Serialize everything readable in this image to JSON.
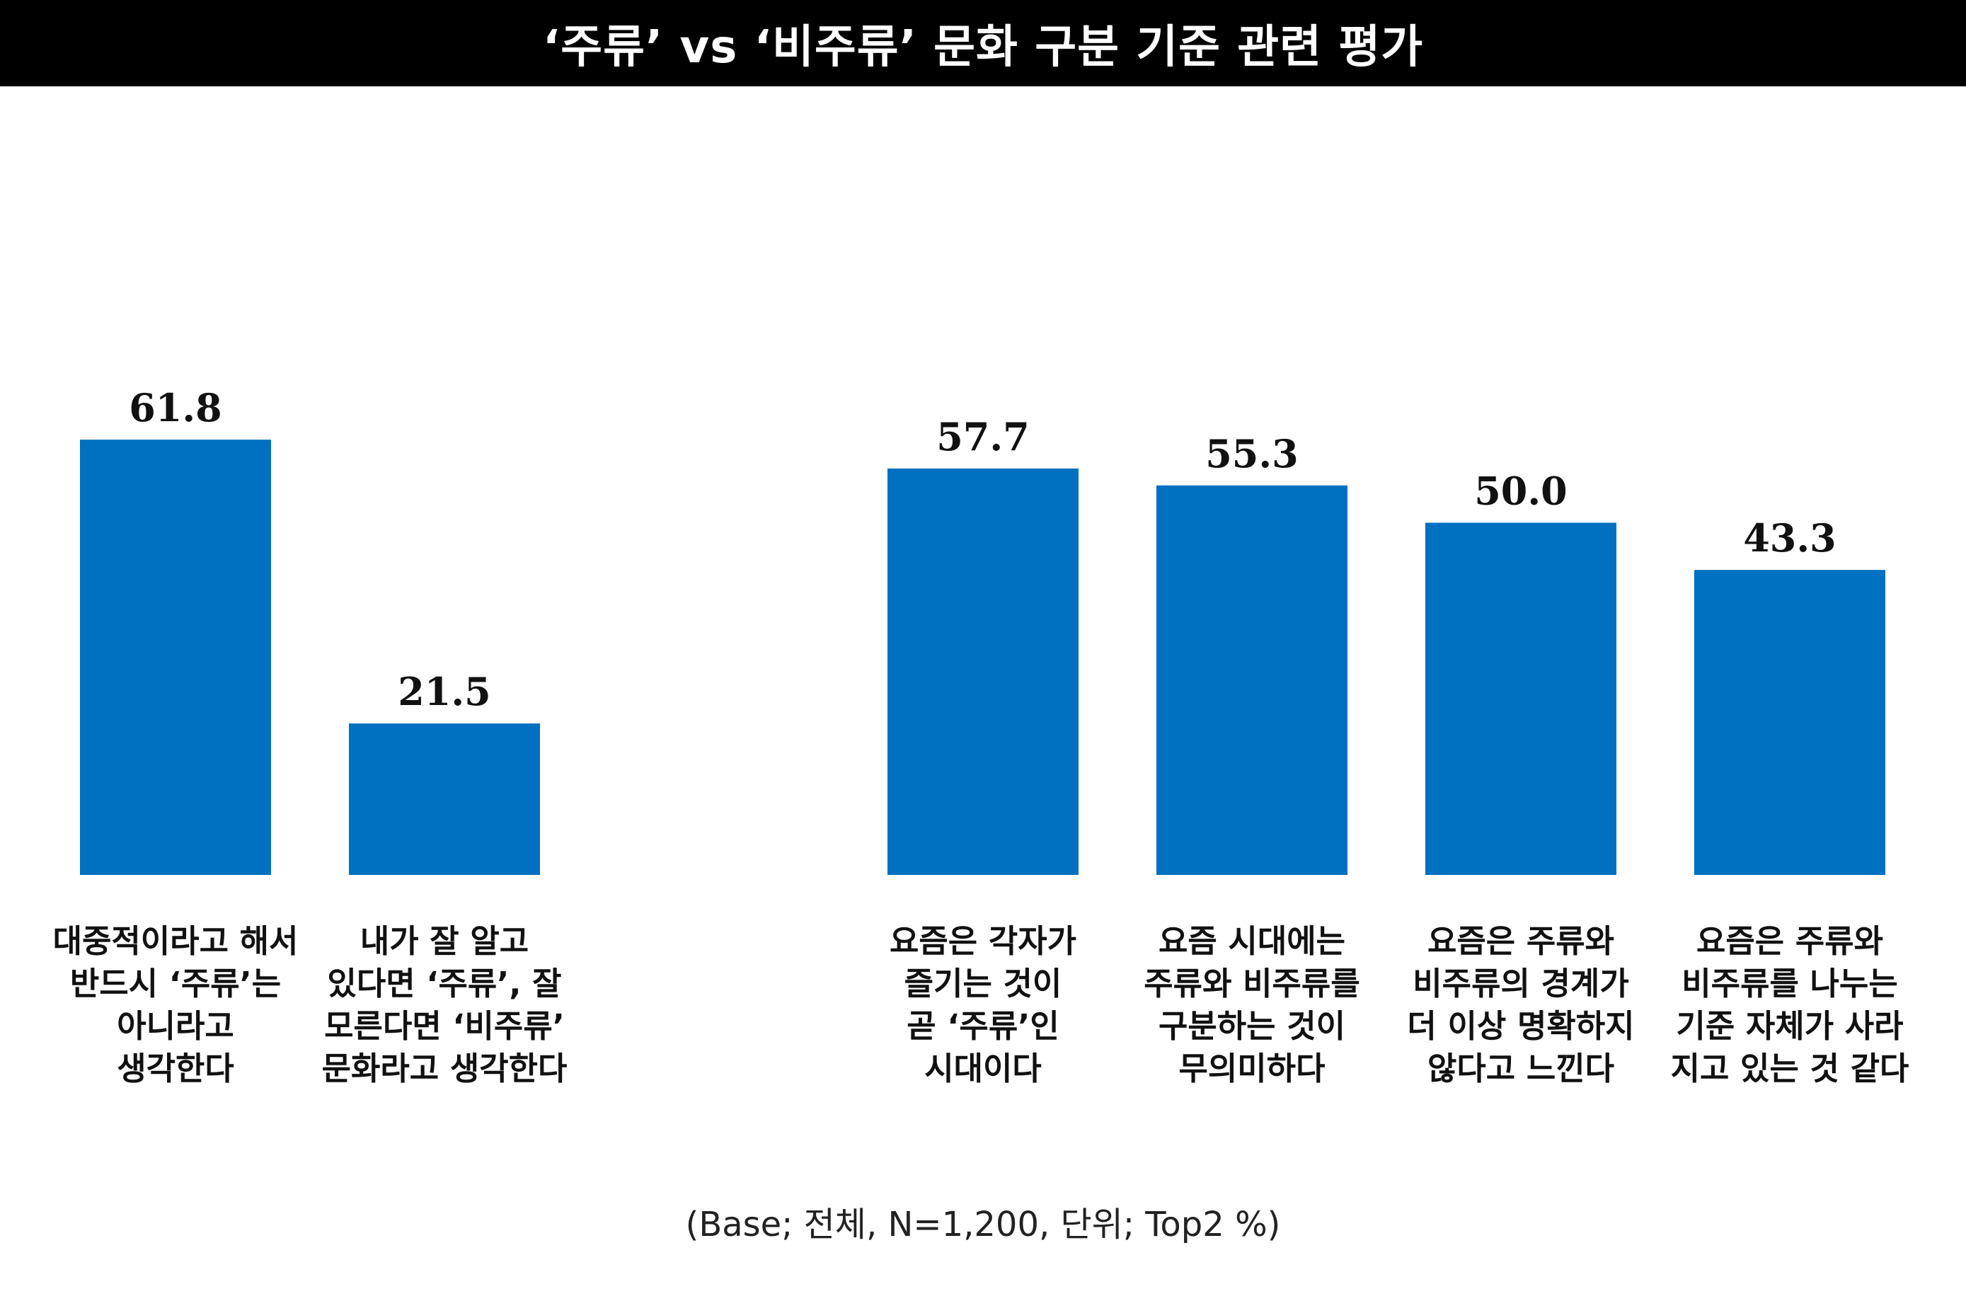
{
  "title": "‘주류’ vs ‘비주류’ 문화 구분 기준 관련 평가",
  "footnote": "(Base; 전체, N=1,200, 단위; Top2 %)",
  "colors": {
    "bar": "#0070C0",
    "title_bg": "#000000",
    "title_text": "#FFFFFF"
  },
  "chart_data": {
    "type": "bar",
    "title": "‘주류’ vs ‘비주류’ 문화 구분 기준 관련 평가",
    "xlabel": "",
    "ylabel": "",
    "unit": "%",
    "ylim": [
      0,
      100
    ],
    "grid": false,
    "legend": "none",
    "groups": [
      {
        "bars": [
          {
            "label": [
              "대중적이라고 해서",
              "반드시 ‘주류’는",
              "아니라고",
              "생각한다"
            ],
            "value": 61.8,
            "value_label": "61.8"
          },
          {
            "label": [
              "내가 잘 알고",
              "있다면 ‘주류’, 잘",
              "모른다면 ‘비주류’",
              "문화라고 생각한다"
            ],
            "value": 21.5,
            "value_label": "21.5"
          }
        ]
      },
      {
        "bars": [
          {
            "label": [
              "요즘은 각자가",
              "즐기는 것이",
              "곧 ‘주류’인",
              "시대이다"
            ],
            "value": 57.7,
            "value_label": "57.7"
          },
          {
            "label": [
              "요즘 시대에는",
              "주류와 비주류를",
              "구분하는 것이",
              "무의미하다"
            ],
            "value": 55.3,
            "value_label": "55.3"
          },
          {
            "label": [
              "요즘은 주류와",
              "비주류의 경계가",
              "더 이상 명확하지",
              "않다고 느낀다"
            ],
            "value": 50.0,
            "value_label": "50.0"
          },
          {
            "label": [
              "요즘은 주류와",
              "비주류를 나누는",
              "기준 자체가 사라",
              "지고 있는 것 같다"
            ],
            "value": 43.3,
            "value_label": "43.3"
          }
        ]
      }
    ]
  }
}
